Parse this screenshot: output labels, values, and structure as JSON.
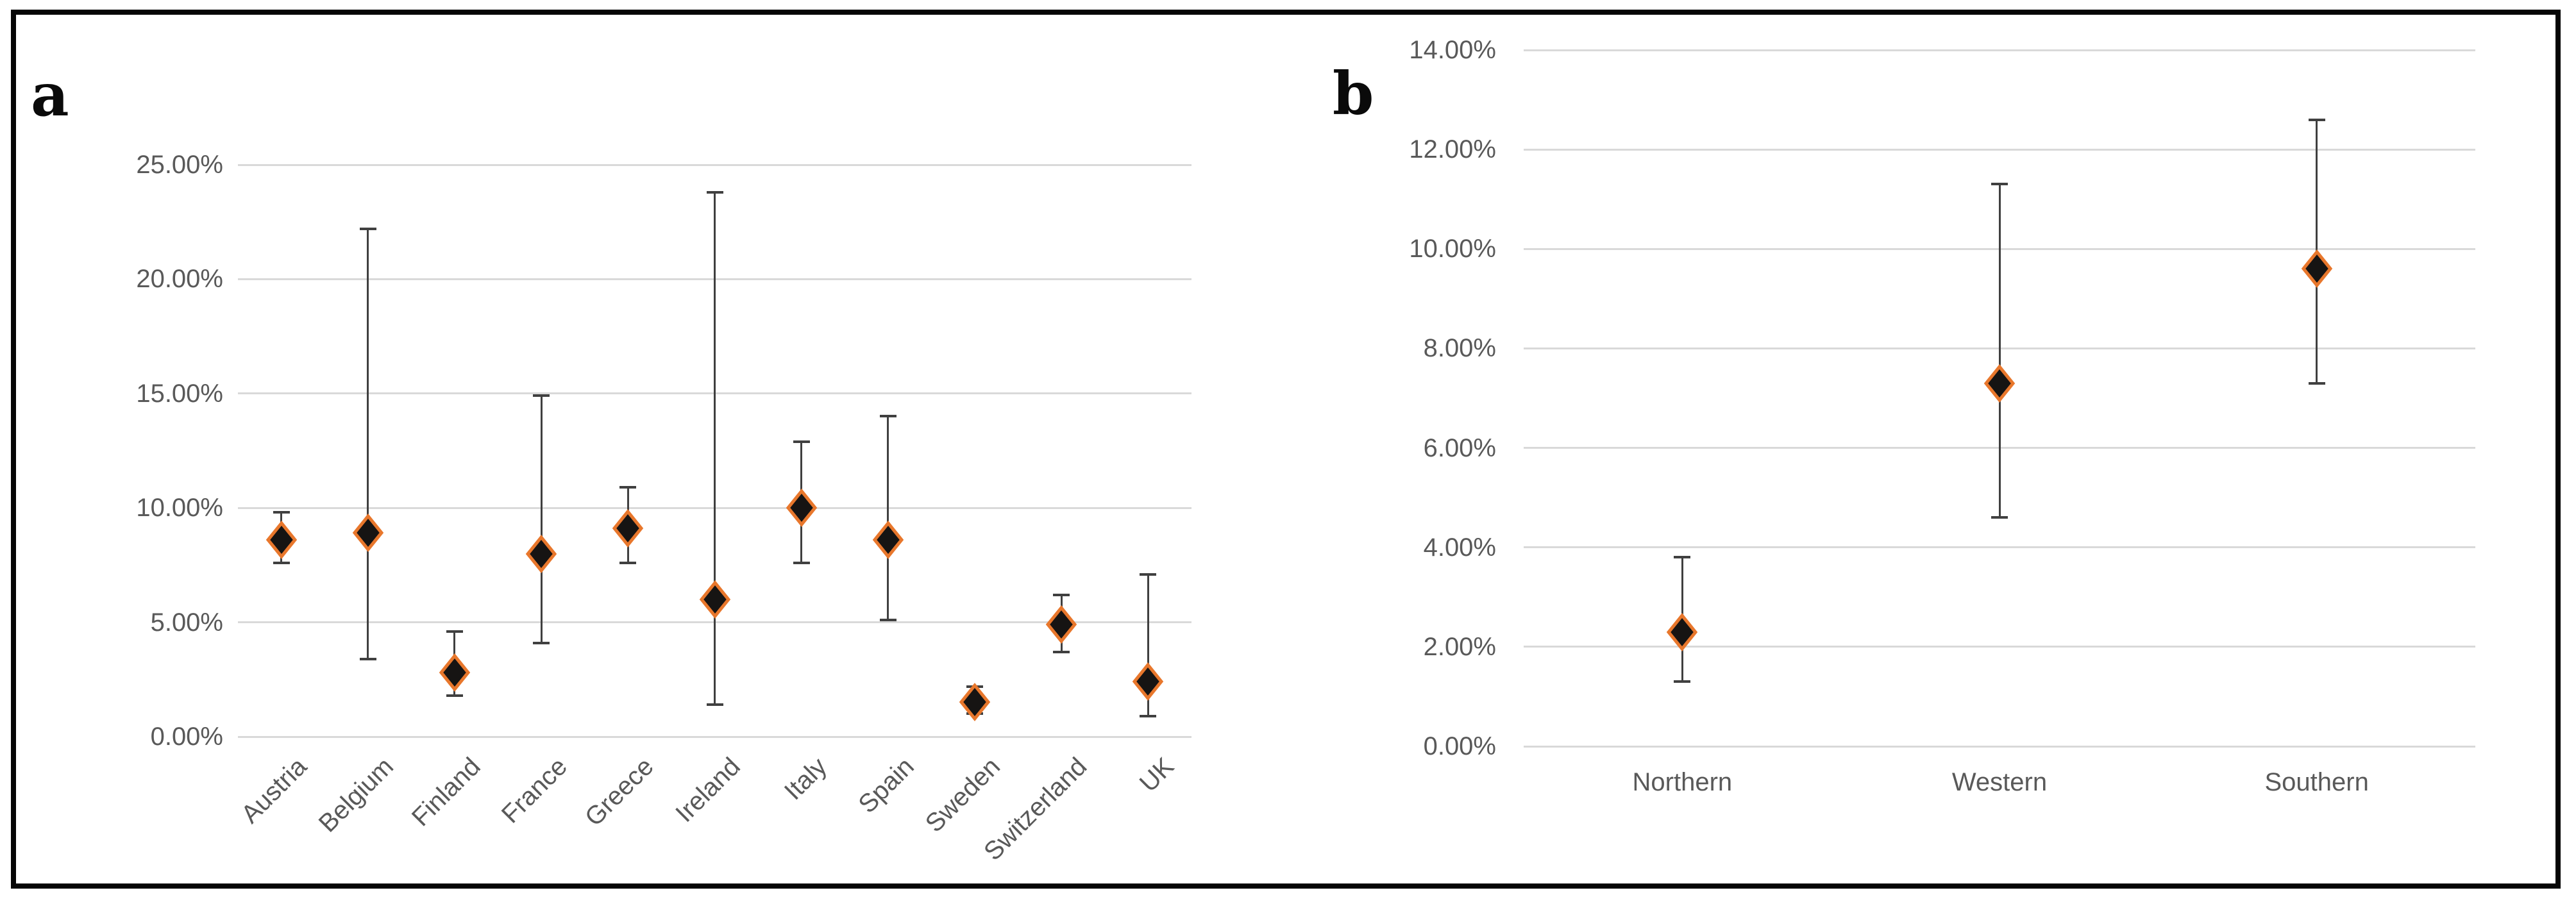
{
  "panels": {
    "a": {
      "label": "a"
    },
    "b": {
      "label": "b"
    }
  },
  "chart_data": [
    {
      "type": "scatter",
      "panel": "a",
      "title": "",
      "xlabel": "",
      "ylabel": "",
      "description": "Point estimates (diamonds) with confidence-interval error bars by country",
      "categories": [
        "Austria",
        "Belgium",
        "Finland",
        "France",
        "Greece",
        "Ireland",
        "Italy",
        "Spain",
        "Sweden",
        "Switzerland",
        "UK"
      ],
      "series": [
        {
          "name": "point-estimate",
          "values": [
            8.6,
            8.9,
            2.8,
            8.0,
            9.1,
            6.0,
            10.0,
            8.6,
            1.5,
            4.9,
            2.4
          ],
          "ci_low": [
            7.6,
            3.4,
            1.8,
            4.1,
            7.6,
            1.4,
            7.6,
            5.1,
            1.0,
            3.7,
            0.9
          ],
          "ci_high": [
            9.8,
            22.2,
            4.6,
            14.9,
            10.9,
            23.8,
            12.9,
            14.0,
            2.2,
            6.2,
            7.1
          ]
        }
      ],
      "ylim": [
        0,
        25
      ],
      "y_tick_values": [
        25,
        20,
        15,
        10,
        5,
        0
      ],
      "y_tick_labels": [
        "25.00%",
        "20.00%",
        "15.00%",
        "10.00%",
        "5.00%",
        "0.00%"
      ],
      "grid": true,
      "legend": false,
      "marker": "diamond",
      "rotated_x_labels": true,
      "colors": {
        "marker_fill": "#161413",
        "marker_edge": "#E8772C",
        "error_bar": "#404040",
        "gridline": "#D9D9D9",
        "tick_label": "#595959"
      }
    },
    {
      "type": "scatter",
      "panel": "b",
      "title": "",
      "xlabel": "",
      "ylabel": "",
      "description": "Point estimates (diamonds) with confidence-interval error bars by European region",
      "categories": [
        "Northern",
        "Western",
        "Southern"
      ],
      "series": [
        {
          "name": "point-estimate",
          "values": [
            2.3,
            7.3,
            9.6
          ],
          "ci_low": [
            1.3,
            4.6,
            7.3
          ],
          "ci_high": [
            3.8,
            11.3,
            12.6
          ]
        }
      ],
      "ylim": [
        0,
        14
      ],
      "y_tick_values": [
        14,
        12,
        10,
        8,
        6,
        4,
        2,
        0
      ],
      "y_tick_labels": [
        "14.00%",
        "12.00%",
        "10.00%",
        "8.00%",
        "6.00%",
        "4.00%",
        "2.00%",
        "0.00%"
      ],
      "grid": true,
      "legend": false,
      "marker": "diamond",
      "rotated_x_labels": false,
      "colors": {
        "marker_fill": "#161413",
        "marker_edge": "#E8772C",
        "error_bar": "#404040",
        "gridline": "#D9D9D9",
        "tick_label": "#595959"
      }
    }
  ]
}
